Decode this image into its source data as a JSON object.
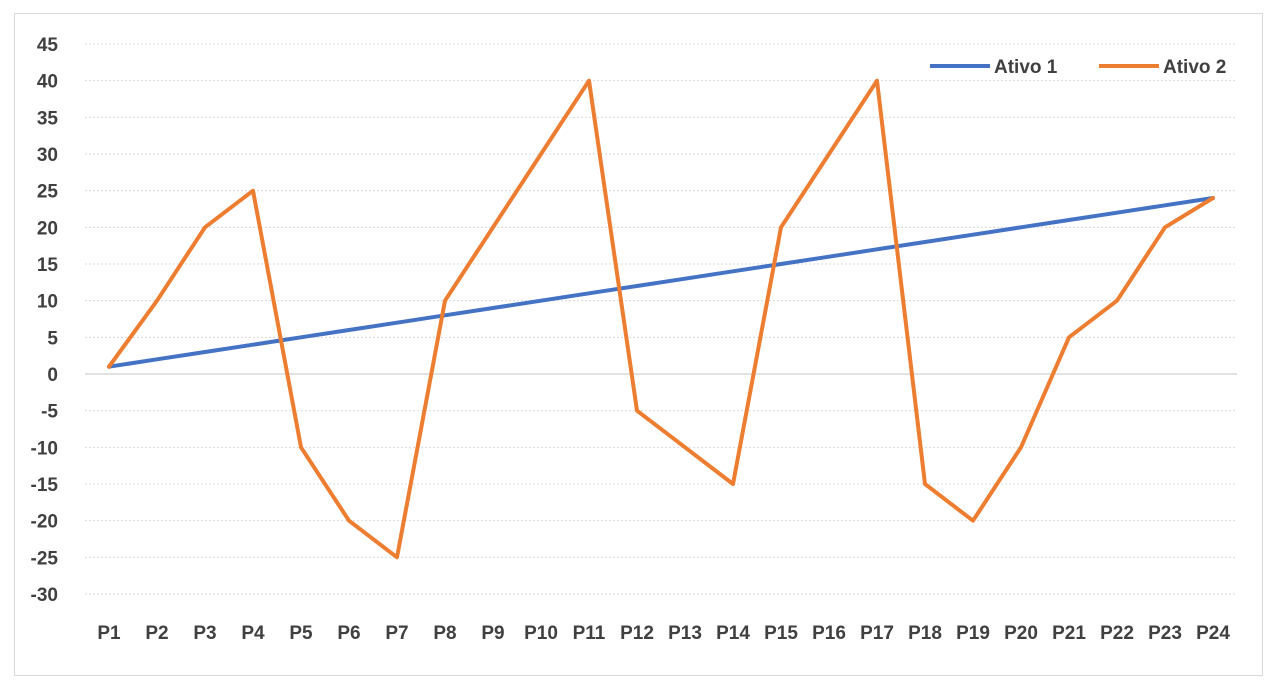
{
  "chart_data": {
    "type": "line",
    "title": "",
    "xlabel": "",
    "ylabel": "",
    "categories": [
      "P1",
      "P2",
      "P3",
      "P4",
      "P5",
      "P6",
      "P7",
      "P8",
      "P9",
      "P10",
      "P11",
      "P12",
      "P13",
      "P14",
      "P15",
      "P16",
      "P17",
      "P18",
      "P19",
      "P20",
      "P21",
      "P22",
      "P23",
      "P24"
    ],
    "ylim": [
      -30,
      45
    ],
    "yticks": [
      "45",
      "40",
      "35",
      "30",
      "25",
      "20",
      "15",
      "10",
      "5",
      "0",
      "-5",
      "-10",
      "-15",
      "-20",
      "-25",
      "-30"
    ],
    "grid": true,
    "legend_position": "top-right",
    "series": [
      {
        "name": "Ativo 1",
        "color": "#4472c4",
        "values": [
          1,
          2,
          3,
          4,
          5,
          6,
          7,
          8,
          9,
          10,
          11,
          12,
          13,
          14,
          15,
          16,
          17,
          18,
          19,
          20,
          21,
          22,
          23,
          24
        ]
      },
      {
        "name": "Ativo 2",
        "color": "#ed7d31",
        "values": [
          1,
          10,
          20,
          25,
          -10,
          -20,
          -25,
          10,
          20,
          30,
          40,
          -5,
          -10,
          -15,
          20,
          30,
          40,
          -15,
          -20,
          -10,
          5,
          10,
          20,
          24
        ]
      }
    ]
  }
}
